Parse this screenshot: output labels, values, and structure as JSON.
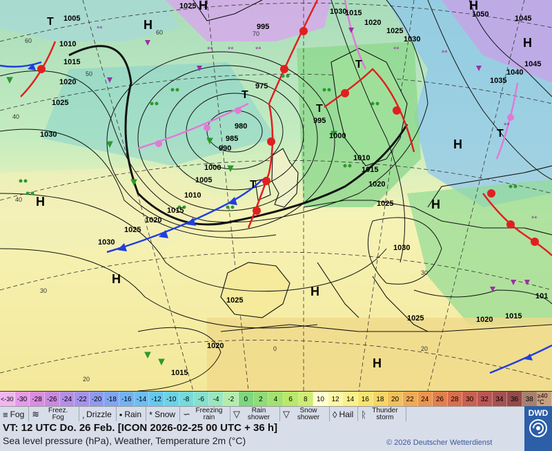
{
  "legend": {
    "ticks": [
      "<-30",
      "-30",
      "-28",
      "-26",
      "-24",
      "-22",
      "-20",
      "-18",
      "-16",
      "-14",
      "-12",
      "-10",
      "-8",
      "-6",
      "-4",
      "-2",
      "0",
      "2",
      "4",
      "6",
      "8",
      "10",
      "12",
      "14",
      "16",
      "18",
      "20",
      "22",
      "24",
      "26",
      "28",
      "30",
      "32",
      "34",
      "36",
      "38",
      "≥40 °C"
    ],
    "colors": [
      "#f0b6f0",
      "#e59be8",
      "#d98ee0",
      "#c98ae0",
      "#b58ee6",
      "#a593ea",
      "#8f9aee",
      "#7fa6f0",
      "#74b2f2",
      "#6cbef2",
      "#66c8ee",
      "#6cd2e6",
      "#75dadb",
      "#86e0cd",
      "#9ae6bd",
      "#b4ecae",
      "#7ed680",
      "#8fdc78",
      "#a3e26e",
      "#b8e86c",
      "#cdee72",
      "#ffffd0",
      "#fdf7a6",
      "#f9f08a",
      "#f7e472",
      "#f5d466",
      "#f2c05c",
      "#eeaa55",
      "#ea9550",
      "#e37f4c",
      "#d86e4c",
      "#ca6050",
      "#bb5656",
      "#a65050",
      "#934a4a",
      "#a88070",
      "#c8a080"
    ]
  },
  "symbols": [
    {
      "icon": "fog-icon",
      "glyph": "≡",
      "label": "Fog"
    },
    {
      "icon": "freezing-fog-icon",
      "glyph": "≋",
      "label": "Freez. Fog"
    },
    {
      "icon": "drizzle-icon",
      "glyph": "‚",
      "label": "Drizzle"
    },
    {
      "icon": "rain-icon",
      "glyph": "•",
      "label": "Rain"
    },
    {
      "icon": "snow-icon",
      "glyph": "*",
      "label": "Snow"
    },
    {
      "icon": "freezing-rain-icon",
      "glyph": "∽",
      "label": "Freezing rain"
    },
    {
      "icon": "rain-shower-icon",
      "glyph": "▽",
      "label": "Rain shower"
    },
    {
      "icon": "snow-shower-icon",
      "glyph": "▽",
      "label": "Snow shower"
    },
    {
      "icon": "hail-icon",
      "glyph": "◊",
      "label": "Hail"
    },
    {
      "icon": "thunderstorm-icon",
      "glyph": "ᚱ",
      "label": "Thunder storm"
    }
  ],
  "info": {
    "vt": "VT: 12 UTC Do.  26 Feb. [ICON 2026-02-25  00 UTC + 36 h]",
    "description": "Sea level pressure (hPa), Weather, Temperature 2m (°C)",
    "copyright": "© 2026 Deutscher Wetterdienst",
    "logo": "DWD"
  },
  "map": {
    "highs": [
      "H",
      "H",
      "H",
      "H",
      "H",
      "H",
      "H",
      "H",
      "H",
      "H"
    ],
    "lows": [
      "T",
      "T",
      "T",
      "T",
      "T",
      "T"
    ],
    "isobar_labels": [
      "1005",
      "1010",
      "1015",
      "1020",
      "1025",
      "1030",
      "1030",
      "995",
      "990",
      "985",
      "980",
      "975",
      "1000",
      "1005",
      "1010",
      "1015",
      "1020",
      "1025",
      "1030",
      "1035",
      "1040",
      "1045",
      "1050",
      "1045",
      "1000",
      "995",
      "1010",
      "1015",
      "1020",
      "1025",
      "1030",
      "1025",
      "1020",
      "1015",
      "1020",
      "1015",
      "1025",
      "1020",
      "1030",
      "1015",
      "1025",
      "1025",
      "101"
    ],
    "lat_labels": [
      "60",
      "50",
      "40",
      "30",
      "20",
      "60",
      "70",
      "40",
      "30",
      "20",
      "0"
    ]
  }
}
